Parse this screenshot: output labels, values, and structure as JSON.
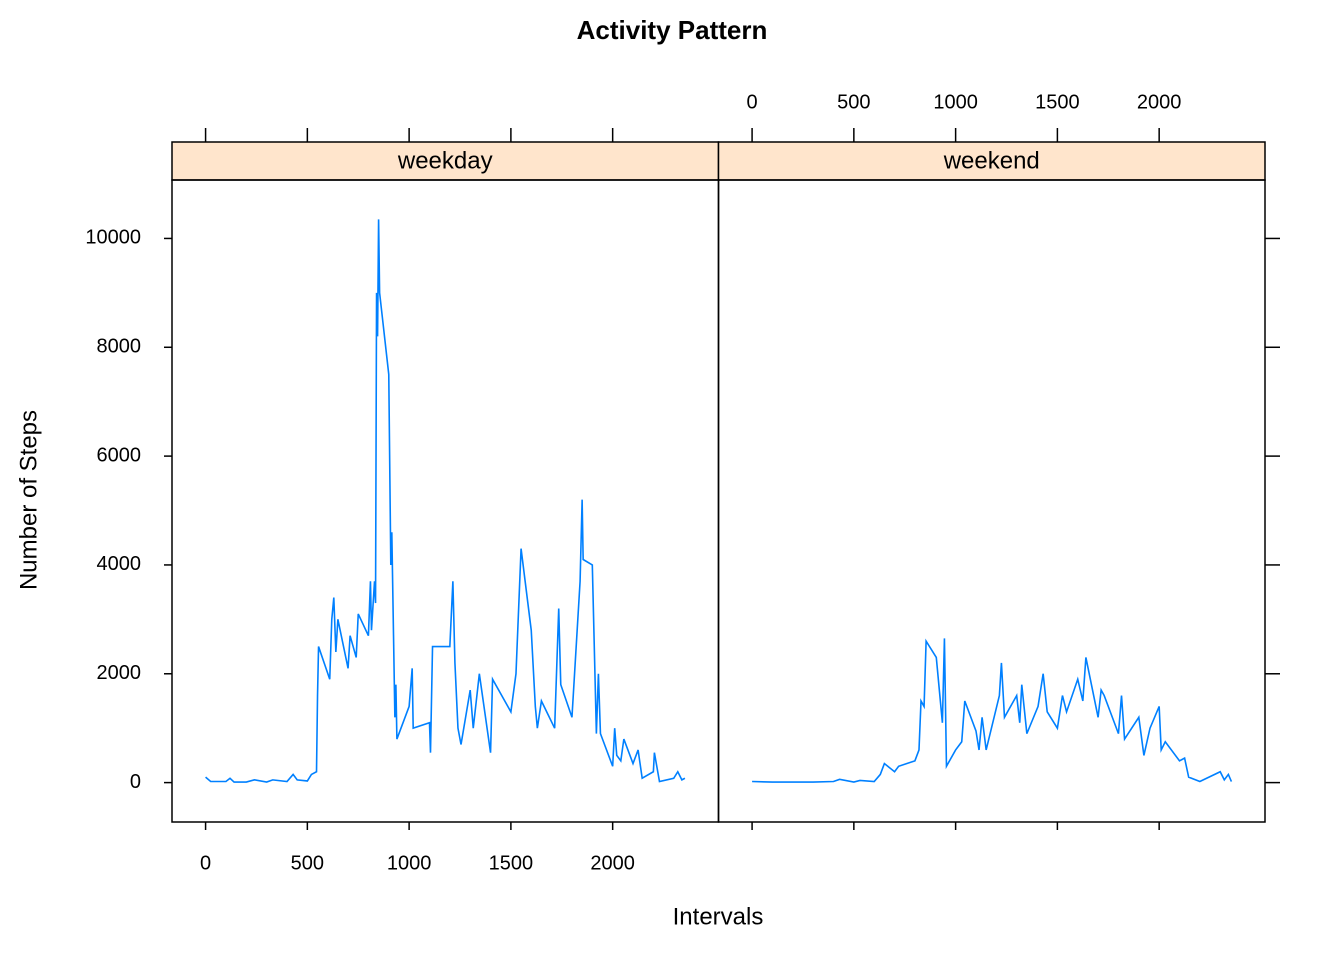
{
  "chart_data": {
    "type": "line",
    "title": "Activity Pattern",
    "x_label": "Intervals",
    "y_label": "Number of Steps",
    "xlim": [
      -165,
      2520
    ],
    "xticks": [
      0,
      500,
      1000,
      1500,
      2000
    ],
    "ylim": [
      -724,
      11074
    ],
    "yticks": [
      0,
      2000,
      4000,
      6000,
      8000,
      10000
    ],
    "strip_color": "#ffe5cc",
    "series": [
      {
        "name": "weekday",
        "color": "#0080ff",
        "x": [
          0,
          25,
          55,
          100,
          120,
          140,
          200,
          240,
          300,
          330,
          400,
          430,
          450,
          500,
          520,
          545,
          550,
          555,
          610,
          620,
          630,
          640,
          650,
          700,
          710,
          740,
          750,
          800,
          810,
          815,
          830,
          835,
          840,
          845,
          850,
          855,
          900,
          910,
          915,
          930,
          935,
          940,
          1000,
          1015,
          1020,
          1100,
          1105,
          1115,
          1200,
          1215,
          1225,
          1240,
          1255,
          1300,
          1315,
          1345,
          1400,
          1410,
          1500,
          1525,
          1550,
          1600,
          1620,
          1630,
          1650,
          1715,
          1735,
          1745,
          1800,
          1840,
          1850,
          1855,
          1900,
          1920,
          1930,
          1940,
          2000,
          2010,
          2020,
          2040,
          2055,
          2100,
          2125,
          2145,
          2200,
          2205,
          2230,
          2300,
          2320,
          2340,
          2355
        ],
        "values": [
          100,
          20,
          20,
          20,
          80,
          10,
          10,
          50,
          10,
          50,
          20,
          150,
          50,
          30,
          150,
          200,
          1600,
          2500,
          1900,
          3000,
          3400,
          2400,
          3000,
          2100,
          2700,
          2300,
          3100,
          2700,
          3700,
          2800,
          3700,
          3300,
          9000,
          8200,
          10350,
          9000,
          7500,
          4000,
          4600,
          1200,
          1800,
          800,
          1400,
          2100,
          1000,
          1100,
          550,
          2500,
          2500,
          3700,
          2200,
          1000,
          700,
          1700,
          1000,
          2000,
          550,
          1900,
          1300,
          2000,
          4300,
          2800,
          1400,
          1000,
          1500,
          1000,
          3200,
          1800,
          1200,
          3700,
          5200,
          4100,
          4000,
          900,
          2000,
          900,
          300,
          1000,
          500,
          400,
          800,
          350,
          600,
          80,
          200,
          550,
          20,
          80,
          200,
          50,
          80
        ]
      },
      {
        "name": "weekend",
        "color": "#0080ff",
        "x": [
          0,
          100,
          200,
          300,
          400,
          430,
          500,
          530,
          600,
          630,
          650,
          700,
          720,
          800,
          820,
          830,
          845,
          855,
          905,
          935,
          945,
          955,
          1000,
          1030,
          1045,
          1100,
          1115,
          1130,
          1150,
          1215,
          1225,
          1240,
          1300,
          1315,
          1325,
          1350,
          1405,
          1430,
          1450,
          1500,
          1525,
          1545,
          1600,
          1625,
          1640,
          1700,
          1715,
          1730,
          1800,
          1815,
          1830,
          1900,
          1925,
          1955,
          2000,
          2010,
          2030,
          2100,
          2125,
          2145,
          2200,
          2300,
          2320,
          2340,
          2355
        ],
        "values": [
          20,
          10,
          10,
          10,
          20,
          60,
          10,
          40,
          20,
          150,
          350,
          200,
          300,
          400,
          600,
          1500,
          1400,
          2600,
          2300,
          1100,
          2650,
          300,
          600,
          750,
          1500,
          950,
          600,
          1200,
          600,
          1600,
          2200,
          1200,
          1600,
          1100,
          1800,
          900,
          1400,
          2000,
          1300,
          1000,
          1600,
          1300,
          1900,
          1500,
          2300,
          1200,
          1700,
          1600,
          900,
          1600,
          800,
          1200,
          500,
          1000,
          1400,
          600,
          750,
          400,
          450,
          100,
          20,
          200,
          50,
          150,
          20
        ]
      }
    ]
  }
}
